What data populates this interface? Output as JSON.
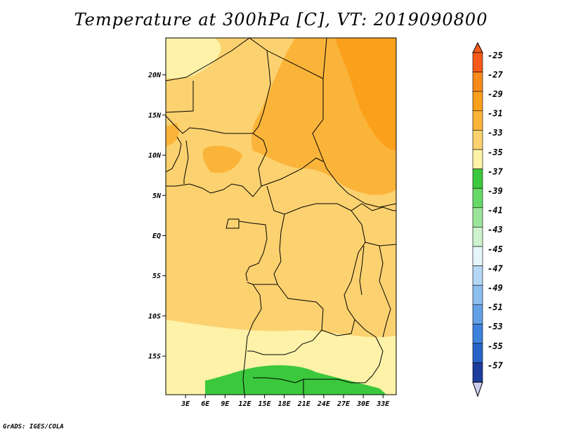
{
  "title": "Temperature at 300hPa [C], VT: 2019090800",
  "footer": "GrADS: IGES/COLA",
  "map": {
    "lat_labels": [
      "20N",
      "15N",
      "10N",
      "5N",
      "EQ",
      "5S",
      "10S",
      "15S"
    ],
    "lat_values": [
      20,
      15,
      10,
      5,
      0,
      -5,
      -10,
      -15
    ],
    "lon_labels": [
      "3E",
      "6E",
      "9E",
      "12E",
      "15E",
      "18E",
      "21E",
      "24E",
      "27E",
      "30E",
      "33E"
    ],
    "lon_values": [
      3,
      6,
      9,
      12,
      15,
      18,
      21,
      24,
      27,
      30,
      33
    ],
    "lon_range": [
      0,
      35
    ],
    "lat_range": [
      -19.8,
      24.6
    ]
  },
  "legend": {
    "labels": [
      "-25",
      "-27",
      "-29",
      "-31",
      "-33",
      "-35",
      "-37",
      "-39",
      "-41",
      "-43",
      "-45",
      "-47",
      "-49",
      "-51",
      "-53",
      "-55",
      "-57"
    ],
    "colors": [
      "#f55a1a",
      "#f78a1a",
      "#faa01a",
      "#fbb43a",
      "#fcd270",
      "#fdf2a8",
      "#3cc83c",
      "#66d966",
      "#9be59b",
      "#cdf2cd",
      "#e6f5fa",
      "#b4d7f5",
      "#8cbeee",
      "#64a0e6",
      "#3c82dc",
      "#2864c8",
      "#1e3c9b"
    ],
    "lowest_color": "#cdcdef"
  },
  "chart_data": {
    "type": "heatmap",
    "variable": "Temperature at 300hPa",
    "units": "C",
    "valid_time": "2019090800",
    "levels": [
      -25,
      -27,
      -29,
      -31,
      -33,
      -35,
      -37,
      -39,
      -41,
      -43,
      -45,
      -47,
      -49,
      -51,
      -53,
      -55,
      -57
    ],
    "x_axis": "longitude (E)",
    "y_axis": "latitude"
  }
}
